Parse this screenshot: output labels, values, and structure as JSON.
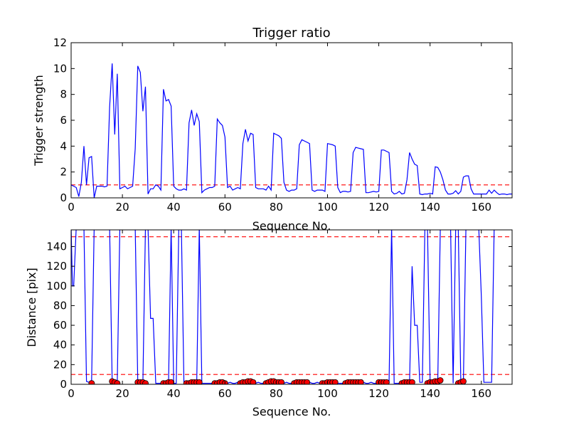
{
  "chart_data": [
    {
      "type": "line",
      "title": "Trigger ratio",
      "xlabel": "Sequence No.",
      "ylabel": "Trigger strength",
      "xlim": [
        0,
        172
      ],
      "ylim": [
        0,
        12
      ],
      "xticks": [
        0,
        20,
        40,
        60,
        80,
        100,
        120,
        140,
        160
      ],
      "yticks": [
        0,
        2,
        4,
        6,
        8,
        10,
        12
      ],
      "threshold": 1.0,
      "colors": {
        "line": "#0000ff",
        "threshold": "#ff0000"
      },
      "series": [
        {
          "name": "Trigger strength",
          "x": [
            0,
            1,
            2,
            3,
            4,
            5,
            6,
            7,
            8,
            9,
            10,
            11,
            12,
            13,
            14,
            15,
            16,
            17,
            18,
            19,
            20,
            21,
            22,
            23,
            24,
            25,
            26,
            27,
            28,
            29,
            30,
            31,
            32,
            33,
            34,
            35,
            36,
            37,
            38,
            39,
            40,
            41,
            42,
            43,
            44,
            45,
            46,
            47,
            48,
            49,
            50,
            51,
            52,
            53,
            54,
            55,
            56,
            57,
            58,
            59,
            60,
            61,
            62,
            63,
            64,
            65,
            66,
            67,
            68,
            69,
            70,
            71,
            72,
            73,
            74,
            75,
            76,
            77,
            78,
            79,
            80,
            81,
            82,
            83,
            84,
            85,
            86,
            87,
            88,
            89,
            90,
            91,
            92,
            93,
            94,
            95,
            96,
            97,
            98,
            99,
            100,
            101,
            102,
            103,
            104,
            105,
            106,
            107,
            108,
            109,
            110,
            111,
            112,
            113,
            114,
            115,
            116,
            117,
            118,
            119,
            120,
            121,
            122,
            123,
            124,
            125,
            126,
            127,
            128,
            129,
            130,
            131,
            132,
            133,
            134,
            135,
            136,
            137,
            138,
            139,
            140,
            141,
            142,
            143,
            144,
            145,
            146,
            147,
            148,
            149,
            150,
            151,
            152,
            153,
            154,
            155,
            156,
            157,
            158,
            159,
            160,
            161,
            162,
            163,
            164,
            165,
            166,
            167,
            168,
            169,
            170,
            171,
            172
          ],
          "values": [
            1.0,
            0.9,
            0.8,
            0.1,
            1.2,
            4.0,
            1.0,
            3.1,
            3.2,
            0.0,
            0.9,
            0.9,
            0.9,
            0.85,
            0.9,
            7.0,
            10.4,
            4.9,
            9.6,
            0.7,
            0.8,
            0.9,
            0.7,
            0.8,
            0.9,
            3.8,
            10.2,
            9.7,
            6.7,
            8.6,
            0.3,
            0.7,
            0.7,
            1.0,
            0.9,
            0.6,
            8.4,
            7.5,
            7.6,
            7.1,
            0.9,
            0.7,
            0.6,
            0.6,
            0.7,
            0.6,
            5.8,
            6.8,
            5.6,
            6.5,
            5.9,
            0.4,
            0.6,
            0.7,
            0.8,
            0.8,
            0.9,
            6.1,
            5.8,
            5.6,
            4.7,
            0.8,
            0.9,
            0.6,
            0.7,
            0.8,
            0.7,
            4.2,
            5.3,
            4.4,
            5.0,
            4.9,
            0.8,
            0.7,
            0.7,
            0.7,
            0.6,
            0.9,
            0.6,
            5.0,
            4.9,
            4.8,
            4.6,
            1.2,
            0.6,
            0.5,
            0.6,
            0.6,
            0.7,
            4.1,
            4.5,
            4.4,
            4.3,
            4.2,
            0.6,
            0.5,
            0.6,
            0.6,
            0.6,
            0.5,
            4.2,
            4.15,
            4.1,
            4.0,
            0.8,
            0.4,
            0.5,
            0.5,
            0.45,
            0.5,
            3.5,
            3.9,
            3.85,
            3.8,
            3.75,
            0.4,
            0.4,
            0.45,
            0.5,
            0.45,
            0.5,
            3.7,
            3.7,
            3.6,
            3.5,
            0.5,
            0.3,
            0.35,
            0.5,
            0.3,
            0.35,
            1.4,
            3.5,
            3.0,
            2.6,
            2.5,
            0.3,
            0.25,
            0.3,
            0.3,
            0.35,
            0.3,
            2.4,
            2.35,
            2.0,
            1.4,
            0.6,
            0.3,
            0.3,
            0.35,
            0.55,
            0.3,
            0.5,
            1.6,
            1.7,
            1.7,
            0.7,
            0.3,
            0.3,
            0.3,
            0.3,
            0.3,
            0.3,
            0.6,
            0.35,
            0.6,
            0.4,
            0.25,
            0.3,
            0.3,
            0.25,
            0.3,
            0.3
          ]
        }
      ]
    },
    {
      "type": "line",
      "title": "",
      "xlabel": "Sequence No.",
      "ylabel": "Distance [pix]",
      "xlim": [
        0,
        172
      ],
      "ylim": [
        0,
        157
      ],
      "xticks": [
        0,
        20,
        40,
        60,
        80,
        100,
        120,
        140,
        160
      ],
      "yticks": [
        0,
        20,
        40,
        60,
        80,
        100,
        120,
        140
      ],
      "thresholds": [
        10,
        150
      ],
      "colors": {
        "line": "#0000ff",
        "threshold": "#ff0000",
        "marker": "#ff0000",
        "marker_edge": "#000000"
      },
      "series": [
        {
          "name": "Distance",
          "x": [
            0,
            0.5,
            1,
            2,
            3,
            4,
            5,
            6,
            7,
            8,
            9,
            10,
            11,
            12,
            13,
            14,
            15,
            16,
            17,
            18,
            19,
            20,
            21,
            22,
            23,
            24,
            25,
            26,
            27,
            28,
            29,
            30,
            31,
            32,
            33,
            34,
            35,
            36,
            37,
            38,
            39,
            40,
            41,
            42,
            43,
            44,
            45,
            46,
            47,
            48,
            49,
            50,
            51,
            52,
            53,
            54,
            55,
            56,
            57,
            58,
            59,
            60,
            61,
            62,
            63,
            64,
            65,
            66,
            67,
            68,
            69,
            70,
            71,
            72,
            73,
            74,
            75,
            76,
            77,
            78,
            79,
            80,
            81,
            82,
            83,
            84,
            85,
            86,
            87,
            88,
            89,
            90,
            91,
            92,
            93,
            94,
            95,
            96,
            97,
            98,
            99,
            100,
            101,
            102,
            103,
            104,
            105,
            106,
            107,
            108,
            109,
            110,
            111,
            112,
            113,
            114,
            115,
            116,
            117,
            118,
            119,
            120,
            121,
            122,
            123,
            124,
            125,
            126,
            127,
            128,
            129,
            130,
            131,
            132,
            133,
            134,
            135,
            136,
            137,
            138,
            139,
            140,
            141,
            142,
            143,
            144,
            145,
            146,
            147,
            148,
            149,
            150,
            151,
            152,
            153,
            154,
            155,
            156,
            157,
            158,
            159,
            160,
            161,
            162,
            163,
            164,
            165,
            166
          ],
          "values": [
            160,
            100,
            100,
            160,
            160,
            160,
            160,
            3,
            2,
            3,
            160,
            160,
            160,
            160,
            160,
            160,
            160,
            3,
            2,
            3,
            160,
            160,
            160,
            160,
            160,
            160,
            160,
            2,
            2,
            2,
            160,
            160,
            67,
            67,
            1,
            1,
            1,
            1,
            2,
            2,
            160,
            1,
            1,
            160,
            160,
            1,
            1,
            1,
            1,
            1,
            2,
            160,
            1,
            1,
            1,
            1,
            1,
            2,
            2,
            1,
            1,
            2,
            1,
            2,
            1,
            1,
            2,
            1,
            1,
            2,
            3,
            2,
            1,
            1,
            2,
            1,
            1,
            2,
            2,
            1,
            2,
            2,
            1,
            1,
            1,
            2,
            1,
            1,
            2,
            1,
            1,
            2,
            1,
            1,
            2,
            1,
            1,
            2,
            1,
            1,
            2,
            1,
            1,
            1,
            2,
            1,
            1,
            1,
            2,
            1,
            1,
            2,
            1,
            1,
            1,
            2,
            1,
            1,
            2,
            1,
            1,
            2,
            1,
            1,
            1,
            1,
            160,
            1,
            1,
            1,
            2,
            1,
            1,
            1,
            120,
            60,
            60,
            2,
            2,
            160,
            160,
            3,
            3,
            3,
            4,
            160,
            160,
            160,
            160,
            160,
            1,
            160,
            160,
            2,
            2,
            160,
            160,
            160,
            160,
            160,
            160,
            90,
            2,
            2,
            2,
            2,
            160,
            160
          ]
        },
        {
          "name": "Matches",
          "x": [
            8,
            16,
            17,
            18,
            26,
            27,
            28,
            29,
            36,
            37,
            38,
            39,
            45,
            46,
            47,
            48,
            49,
            50,
            56,
            57,
            58,
            59,
            60,
            66,
            67,
            68,
            69,
            70,
            71,
            76,
            77,
            78,
            79,
            80,
            81,
            82,
            87,
            88,
            89,
            90,
            91,
            92,
            98,
            99,
            100,
            101,
            102,
            103,
            107,
            108,
            109,
            110,
            111,
            112,
            113,
            120,
            121,
            122,
            123,
            129,
            130,
            131,
            132,
            133,
            139,
            140,
            141,
            142,
            143,
            144,
            151,
            152,
            153
          ],
          "values": [
            1,
            3,
            2,
            1,
            2,
            2,
            2,
            1,
            1,
            1,
            2,
            2,
            1,
            1,
            2,
            2,
            2,
            2,
            1,
            1,
            2,
            2,
            1,
            1,
            2,
            2,
            3,
            3,
            2,
            1,
            2,
            3,
            3,
            2,
            2,
            2,
            1,
            2,
            2,
            2,
            2,
            2,
            1,
            1,
            2,
            2,
            2,
            2,
            1,
            2,
            2,
            2,
            2,
            2,
            2,
            2,
            2,
            2,
            2,
            1,
            2,
            2,
            2,
            2,
            1,
            2,
            2,
            3,
            3,
            4,
            1,
            2,
            3
          ]
        }
      ]
    }
  ]
}
